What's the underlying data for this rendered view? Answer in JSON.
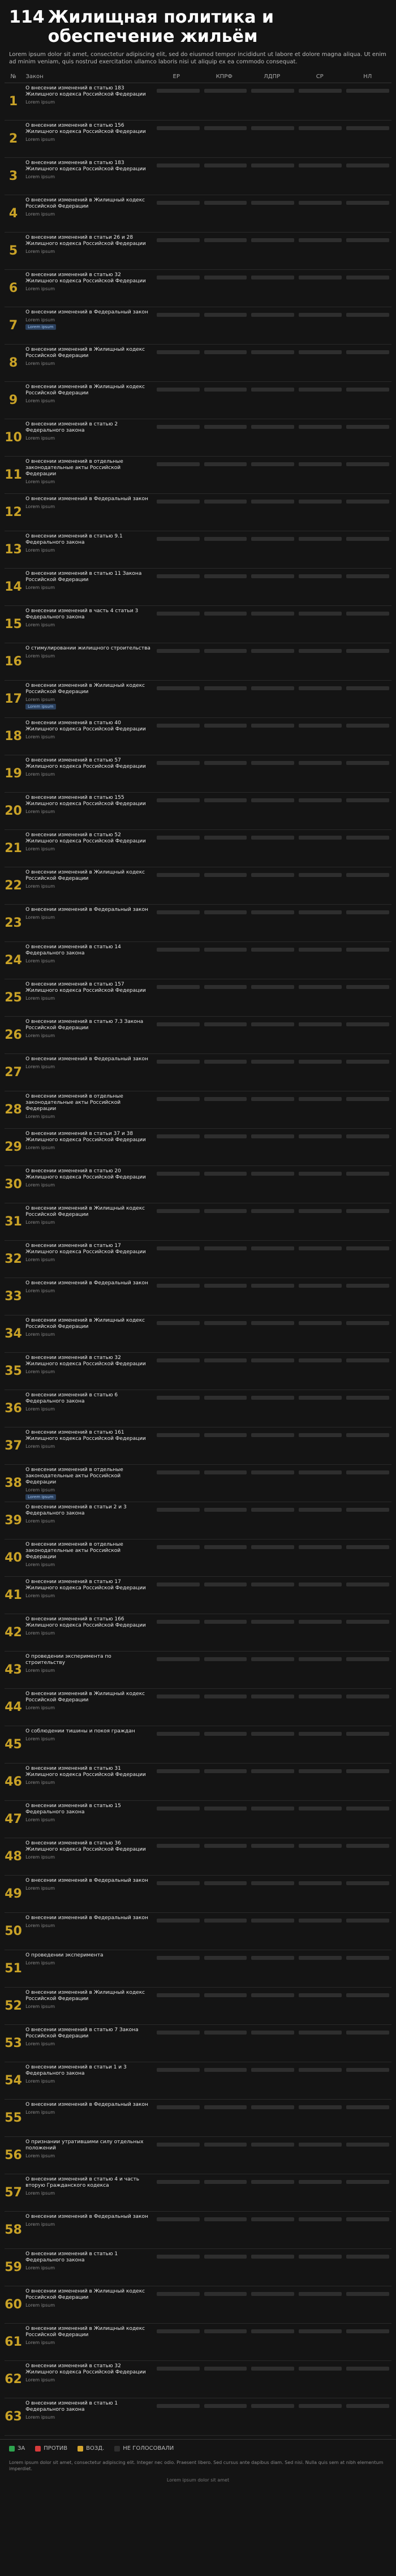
{
  "header": {
    "number": "114",
    "title": "Жилищная политика и обеспечение жильём",
    "subtitle": "Lorem ipsum dolor sit amet, consectetur adipiscing elit, sed do eiusmod tempor incididunt ut labore et dolore magna aliqua. Ut enim ad minim veniam, quis nostrud exercitation ullamco laboris nisi ut aliquip ex ea commodo consequat."
  },
  "table_header": {
    "idx": "№",
    "law": "Закон",
    "factions": [
      "ЕР",
      "КПРФ",
      "ЛДПР",
      "СР",
      "НЛ"
    ]
  },
  "rows": [
    {
      "idx": "1",
      "title": "О внесении изменений в статью 183 Жилищного кодекса Российской Федерации",
      "meta": "Lorem ipsum"
    },
    {
      "idx": "2",
      "title": "О внесении изменений в статью 156 Жилищного кодекса Российской Федерации",
      "meta": "Lorem ipsum"
    },
    {
      "idx": "3",
      "title": "О внесении изменений в статью 183 Жилищного кодекса Российской Федерации",
      "meta": "Lorem ipsum"
    },
    {
      "idx": "4",
      "title": "О внесении изменений в Жилищный кодекс Российской Федерации",
      "meta": "Lorem ipsum"
    },
    {
      "idx": "5",
      "title": "О внесении изменений в статьи 26 и 28 Жилищного кодекса Российской Федерации",
      "meta": "Lorem ipsum"
    },
    {
      "idx": "6",
      "title": "О внесении изменений в статью 32 Жилищного кодекса Российской Федерации",
      "meta": "Lorem ipsum"
    },
    {
      "idx": "7",
      "title": "О внесении изменений в Федеральный закон",
      "meta": "Lorem ipsum",
      "badge": "Lorem ipsum"
    },
    {
      "idx": "8",
      "title": "О внесении изменений в Жилищный кодекс Российской Федерации",
      "meta": "Lorem ipsum"
    },
    {
      "idx": "9",
      "title": "О внесении изменений в Жилищный кодекс Российской Федерации",
      "meta": "Lorem ipsum"
    },
    {
      "idx": "10",
      "title": "О внесении изменений в статью 2 Федерального закона",
      "meta": "Lorem ipsum"
    },
    {
      "idx": "11",
      "title": "О внесении изменений в отдельные законодательные акты Российской Федерации",
      "meta": "Lorem ipsum"
    },
    {
      "idx": "12",
      "title": "О внесении изменений в Федеральный закон",
      "meta": "Lorem ipsum"
    },
    {
      "idx": "13",
      "title": "О внесении изменений в статью 9.1 Федерального закона",
      "meta": "Lorem ipsum"
    },
    {
      "idx": "14",
      "title": "О внесении изменений в статью 11 Закона Российской Федерации",
      "meta": "Lorem ipsum"
    },
    {
      "idx": "15",
      "title": "О внесении изменений в часть 4 статьи 3 Федерального закона",
      "meta": "Lorem ipsum"
    },
    {
      "idx": "16",
      "title": "О стимулировании жилищного строительства",
      "meta": "Lorem ipsum"
    },
    {
      "idx": "17",
      "title": "О внесении изменений в Жилищный кодекс Российской Федерации",
      "meta": "Lorem ipsum",
      "badge": "Lorem ipsum"
    },
    {
      "idx": "18",
      "title": "О внесении изменений в статью 40 Жилищного кодекса Российской Федерации",
      "meta": "Lorem ipsum"
    },
    {
      "idx": "19",
      "title": "О внесении изменений в статью 57 Жилищного кодекса Российской Федерации",
      "meta": "Lorem ipsum"
    },
    {
      "idx": "20",
      "title": "О внесении изменений в статью 155 Жилищного кодекса Российской Федерации",
      "meta": "Lorem ipsum"
    },
    {
      "idx": "21",
      "title": "О внесении изменений в статью 52 Жилищного кодекса Российской Федерации",
      "meta": "Lorem ipsum"
    },
    {
      "idx": "22",
      "title": "О внесении изменений в Жилищный кодекс Российской Федерации",
      "meta": "Lorem ipsum"
    },
    {
      "idx": "23",
      "title": "О внесении изменений в Федеральный закон",
      "meta": "Lorem ipsum"
    },
    {
      "idx": "24",
      "title": "О внесении изменений в статью 14 Федерального закона",
      "meta": "Lorem ipsum"
    },
    {
      "idx": "25",
      "title": "О внесении изменений в статью 157 Жилищного кодекса Российской Федерации",
      "meta": "Lorem ipsum"
    },
    {
      "idx": "26",
      "title": "О внесении изменений в статью 7.3 Закона Российской Федерации",
      "meta": "Lorem ipsum"
    },
    {
      "idx": "27",
      "title": "О внесении изменений в Федеральный закон",
      "meta": "Lorem ipsum"
    },
    {
      "idx": "28",
      "title": "О внесении изменений в отдельные законодательные акты Российской Федерации",
      "meta": "Lorem ipsum"
    },
    {
      "idx": "29",
      "title": "О внесении изменений в статьи 37 и 38 Жилищного кодекса Российской Федерации",
      "meta": "Lorem ipsum"
    },
    {
      "idx": "30",
      "title": "О внесении изменений в статью 20 Жилищного кодекса Российской Федерации",
      "meta": "Lorem ipsum"
    },
    {
      "idx": "31",
      "title": "О внесении изменений в Жилищный кодекс Российской Федерации",
      "meta": "Lorem ipsum"
    },
    {
      "idx": "32",
      "title": "О внесении изменений в статью 17 Жилищного кодекса Российской Федерации",
      "meta": "Lorem ipsum"
    },
    {
      "idx": "33",
      "title": "О внесении изменений в Федеральный закон",
      "meta": "Lorem ipsum"
    },
    {
      "idx": "34",
      "title": "О внесении изменений в Жилищный кодекс Российской Федерации",
      "meta": "Lorem ipsum"
    },
    {
      "idx": "35",
      "title": "О внесении изменений в статью 32 Жилищного кодекса Российской Федерации",
      "meta": "Lorem ipsum"
    },
    {
      "idx": "36",
      "title": "О внесении изменений в статью 6 Федерального закона",
      "meta": "Lorem ipsum"
    },
    {
      "idx": "37",
      "title": "О внесении изменений в статью 161 Жилищного кодекса Российской Федерации",
      "meta": "Lorem ipsum"
    },
    {
      "idx": "38",
      "title": "О внесении изменений в отдельные законодательные акты Российской Федерации",
      "meta": "Lorem ipsum",
      "badge": "Lorem ipsum"
    },
    {
      "idx": "39",
      "title": "О внесении изменений в статьи 2 и 3 Федерального закона",
      "meta": "Lorem ipsum"
    },
    {
      "idx": "40",
      "title": "О внесении изменений в отдельные законодательные акты Российской Федерации",
      "meta": "Lorem ipsum"
    },
    {
      "idx": "41",
      "title": "О внесении изменений в статью 17 Жилищного кодекса Российской Федерации",
      "meta": "Lorem ipsum"
    },
    {
      "idx": "42",
      "title": "О внесении изменений в статью 166 Жилищного кодекса Российской Федерации",
      "meta": "Lorem ipsum"
    },
    {
      "idx": "43",
      "title": "О проведении эксперимента по строительству",
      "meta": "Lorem ipsum"
    },
    {
      "idx": "44",
      "title": "О внесении изменений в Жилищный кодекс Российской Федерации",
      "meta": "Lorem ipsum"
    },
    {
      "idx": "45",
      "title": "О соблюдении тишины и покоя граждан",
      "meta": "Lorem ipsum"
    },
    {
      "idx": "46",
      "title": "О внесении изменений в статью 31 Жилищного кодекса Российской Федерации",
      "meta": "Lorem ipsum"
    },
    {
      "idx": "47",
      "title": "О внесении изменений в статью 15 Федерального закона",
      "meta": "Lorem ipsum"
    },
    {
      "idx": "48",
      "title": "О внесении изменений в статью 36 Жилищного кодекса Российской Федерации",
      "meta": "Lorem ipsum"
    },
    {
      "idx": "49",
      "title": "О внесении изменений в Федеральный закон",
      "meta": "Lorem ipsum"
    },
    {
      "idx": "50",
      "title": "О внесении изменений в Федеральный закон",
      "meta": "Lorem ipsum"
    },
    {
      "idx": "51",
      "title": "О проведении эксперимента",
      "meta": "Lorem ipsum"
    },
    {
      "idx": "52",
      "title": "О внесении изменений в Жилищный кодекс Российской Федерации",
      "meta": "Lorem ipsum"
    },
    {
      "idx": "53",
      "title": "О внесении изменений в статью 7 Закона Российской Федерации",
      "meta": "Lorem ipsum"
    },
    {
      "idx": "54",
      "title": "О внесении изменений в статьи 1 и 3 Федерального закона",
      "meta": "Lorem ipsum"
    },
    {
      "idx": "55",
      "title": "О внесении изменений в Федеральный закон",
      "meta": "Lorem ipsum"
    },
    {
      "idx": "56",
      "title": "О признании утратившими силу отдельных положений",
      "meta": "Lorem ipsum"
    },
    {
      "idx": "57",
      "title": "О внесении изменений в статью 4 и часть вторую Гражданского кодекса",
      "meta": "Lorem ipsum"
    },
    {
      "idx": "58",
      "title": "О внесении изменений в Федеральный закон",
      "meta": "Lorem ipsum"
    },
    {
      "idx": "59",
      "title": "О внесении изменений в статью 1 Федерального закона",
      "meta": "Lorem ipsum"
    },
    {
      "idx": "60",
      "title": "О внесении изменений в Жилищный кодекс Российской Федерации",
      "meta": "Lorem ipsum"
    },
    {
      "idx": "61",
      "title": "О внесении изменений в Жилищный кодекс Российской Федерации",
      "meta": "Lorem ipsum"
    },
    {
      "idx": "62",
      "title": "О внесении изменений в статью 32 Жилищного кодекса Российской Федерации",
      "meta": "Lorem ipsum"
    },
    {
      "idx": "63",
      "title": "О внесении изменений в статью 1 Федерального закона",
      "meta": "Lorem ipsum"
    }
  ],
  "legend": [
    {
      "label": "ЗА",
      "color": "#2ea44f"
    },
    {
      "label": "ПРОТИВ",
      "color": "#d63b3b"
    },
    {
      "label": "ВОЗД.",
      "color": "#d6a62e"
    },
    {
      "label": "НЕ ГОЛОСОВАЛИ",
      "color": "#2e2e2e"
    }
  ],
  "notes": "Lorem ipsum dolor sit amet, consectetur adipiscing elit. Integer nec odio. Praesent libero. Sed cursus ante dapibus diam. Sed nisi. Nulla quis sem at nibh elementum imperdiet.",
  "footer": "Lorem ipsum dolor sit amet"
}
